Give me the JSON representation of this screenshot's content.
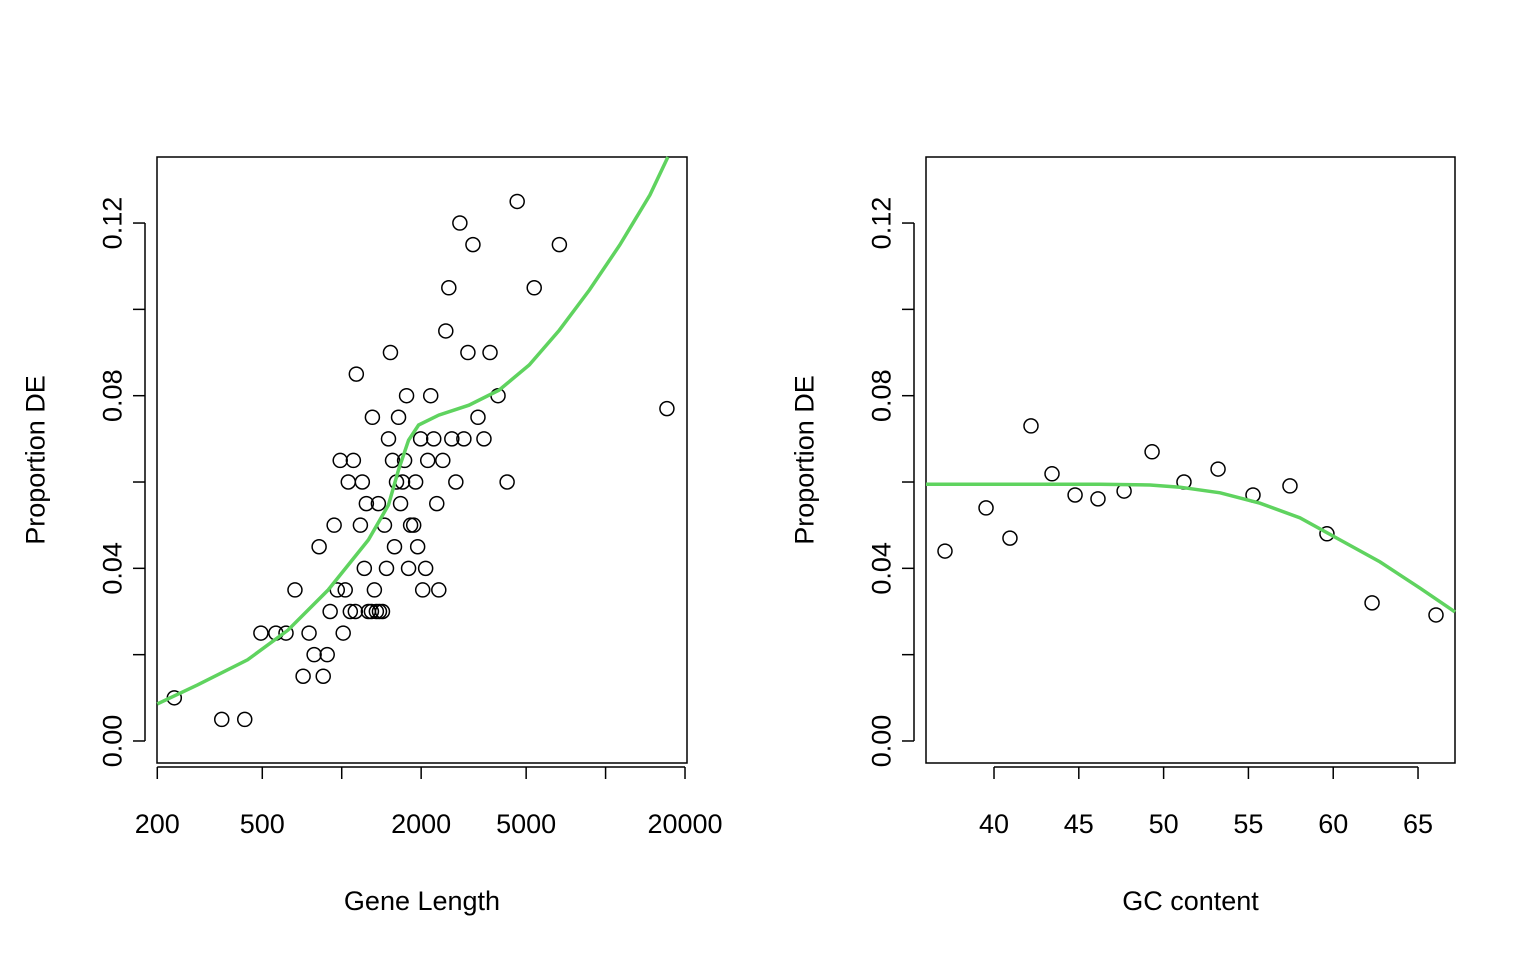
{
  "chart_data": [
    {
      "type": "scatter",
      "xlabel": "Gene Length",
      "ylabel": "Proportion DE",
      "log_x": true,
      "xlim": [
        199.5,
        20350
      ],
      "ylim": [
        -0.0051,
        0.1353
      ],
      "xticks": [
        200,
        500,
        {
          "value": 1000,
          "label": null
        },
        2000,
        5000,
        {
          "value": 10000,
          "label": null
        },
        20000
      ],
      "yticks": [
        {
          "value": 0,
          "label": "0.00"
        },
        {
          "value": 0.02,
          "label": null
        },
        {
          "value": 0.04,
          "label": "0.04"
        },
        {
          "value": 0.06,
          "label": null
        },
        {
          "value": 0.08,
          "label": "0.08"
        },
        {
          "value": 0.1,
          "label": null
        },
        {
          "value": 0.12,
          "label": "0.12"
        }
      ],
      "series": [
        {
          "type": "scatter",
          "color": "#000000",
          "x": [
            232,
            351,
            429,
            494,
            563,
            615,
            665,
            714,
            752,
            786,
            821,
            851,
            881,
            904,
            936,
            962,
            987,
            1013,
            1031,
            1059,
            1078,
            1107,
            1126,
            1136,
            1177,
            1197,
            1218,
            1240,
            1262,
            1296,
            1307,
            1330,
            1353,
            1377,
            1390,
            1427,
            1452,
            1478,
            1504,
            1530,
            1558,
            1585,
            1613,
            1642,
            1671,
            1700,
            1731,
            1761,
            1792,
            1824,
            1874,
            1906,
            1940,
            1991,
            2027,
            2080,
            2118,
            2174,
            2232,
            2292,
            2333,
            2416,
            2480,
            2546,
            2614,
            2707,
            2804,
            2904,
            3008,
            3143,
            3284,
            3460,
            3648,
            3912,
            4235,
            4624,
            5365,
            6682,
            17080
          ],
          "values": [
            0.01,
            0.005,
            0.005,
            0.025,
            0.025,
            0.025,
            0.035,
            0.015,
            0.025,
            0.02,
            0.045,
            0.015,
            0.02,
            0.03,
            0.05,
            0.035,
            0.065,
            0.025,
            0.035,
            0.06,
            0.03,
            0.065,
            0.03,
            0.085,
            0.05,
            0.06,
            0.04,
            0.055,
            0.03,
            0.03,
            0.075,
            0.035,
            0.03,
            0.055,
            0.03,
            0.03,
            0.05,
            0.04,
            0.07,
            0.09,
            0.065,
            0.045,
            0.06,
            0.075,
            0.055,
            0.06,
            0.065,
            0.08,
            0.04,
            0.05,
            0.05,
            0.06,
            0.045,
            0.07,
            0.035,
            0.04,
            0.065,
            0.08,
            0.07,
            0.055,
            0.035,
            0.065,
            0.095,
            0.105,
            0.07,
            0.06,
            0.12,
            0.07,
            0.09,
            0.115,
            0.075,
            0.07,
            0.09,
            0.08,
            0.06,
            0.125,
            0.105,
            0.115,
            0.077
          ]
        },
        {
          "type": "line",
          "color": "#5fd35f",
          "x": [
            200,
            284,
            440,
            626,
            889,
            1262,
            1504,
            1642,
            1792,
            1956,
            2333,
            3034,
            3947,
            5135,
            6682,
            8693,
            11310,
            14720,
            17230
          ],
          "values": [
            0.0086,
            0.013,
            0.0188,
            0.0257,
            0.035,
            0.0466,
            0.0547,
            0.0628,
            0.0697,
            0.0732,
            0.0755,
            0.0778,
            0.0813,
            0.0871,
            0.0952,
            0.1045,
            0.1149,
            0.1265,
            0.1353
          ]
        }
      ]
    },
    {
      "type": "scatter",
      "xlabel": "GC content",
      "ylabel": "Proportion DE",
      "log_x": false,
      "xlim": [
        35.99,
        67.18
      ],
      "ylim": [
        -0.0051,
        0.1353
      ],
      "xticks": [
        40,
        45,
        50,
        55,
        60,
        65
      ],
      "yticks": [
        {
          "value": 0,
          "label": "0.00"
        },
        {
          "value": 0.02,
          "label": null
        },
        {
          "value": 0.04,
          "label": "0.04"
        },
        {
          "value": 0.06,
          "label": null
        },
        {
          "value": 0.08,
          "label": "0.08"
        },
        {
          "value": 0.1,
          "label": null
        },
        {
          "value": 0.12,
          "label": "0.12"
        }
      ],
      "series": [
        {
          "type": "scatter",
          "color": "#000000",
          "x": [
            37.11,
            39.53,
            40.94,
            42.18,
            43.42,
            44.78,
            46.13,
            47.67,
            49.32,
            51.2,
            53.21,
            55.27,
            57.45,
            59.63,
            62.29,
            66.06
          ],
          "values": [
            0.044,
            0.054,
            0.047,
            0.073,
            0.0619,
            0.057,
            0.0561,
            0.0579,
            0.067,
            0.06,
            0.063,
            0.057,
            0.0591,
            0.048,
            0.032,
            0.0292
          ]
        },
        {
          "type": "line",
          "color": "#5fd35f",
          "x": [
            35.99,
            46.25,
            49.2,
            50.97,
            53.33,
            55.68,
            58.04,
            60.4,
            62.76,
            65.12,
            67.18
          ],
          "values": [
            0.0595,
            0.0595,
            0.0593,
            0.0588,
            0.0575,
            0.0551,
            0.0517,
            0.0466,
            0.0415,
            0.0354,
            0.0299
          ]
        }
      ]
    }
  ]
}
